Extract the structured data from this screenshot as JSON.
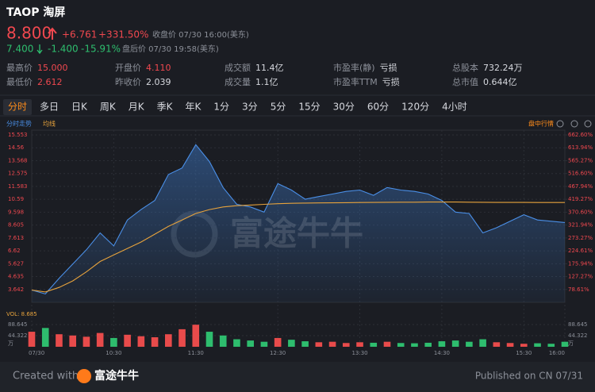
{
  "header": {
    "symbol": "TAOP 淘屏",
    "price": "8.800",
    "change": "+6.761",
    "change_pct": "+331.50%",
    "close_label": "收盘价 07/30 16:00(美东)",
    "ah_price": "7.400",
    "ah_change": "-1.400",
    "ah_pct": "-15.91%",
    "ah_label": "盘后价 07/30 19:58(美东)"
  },
  "stats": [
    {
      "label": "最高价",
      "value": "15.000",
      "color": "#f0484f"
    },
    {
      "label": "最低价",
      "value": "2.612",
      "color": "#f0484f"
    },
    {
      "label": "开盘价",
      "value": "4.110",
      "color": "#f0484f"
    },
    {
      "label": "昨收价",
      "value": "2.039",
      "color": "#d6d8de"
    },
    {
      "label": "成交额",
      "value": "11.4亿",
      "color": "#d6d8de"
    },
    {
      "label": "成交量",
      "value": "1.1亿",
      "color": "#d6d8de"
    },
    {
      "label": "市盈率(静)",
      "value": "亏损",
      "color": "#d6d8de"
    },
    {
      "label": "市盈率TTM",
      "value": "亏损",
      "color": "#d6d8de"
    },
    {
      "label": "总股本",
      "value": "732.24万",
      "color": "#d6d8de"
    },
    {
      "label": "总市值",
      "value": "0.644亿",
      "color": "#d6d8de"
    }
  ],
  "tabs": [
    "分时",
    "多日",
    "日K",
    "周K",
    "月K",
    "季K",
    "年K",
    "1分",
    "3分",
    "5分",
    "15分",
    "30分",
    "60分",
    "120分",
    "4小时"
  ],
  "selected_tab": 0,
  "chart_data": {
    "type": "line",
    "mode_label": "盘中行情",
    "watermark": "富途牛牛",
    "categories": [
      "09:30",
      "09:40",
      "09:50",
      "10:00",
      "10:10",
      "10:20",
      "10:30",
      "10:40",
      "10:50",
      "11:00",
      "11:10",
      "11:20",
      "11:30",
      "11:40",
      "11:50",
      "12:00",
      "12:10",
      "12:20",
      "12:30",
      "12:40",
      "12:50",
      "13:00",
      "13:10",
      "13:20",
      "13:30",
      "13:40",
      "13:50",
      "14:00",
      "14:10",
      "14:20",
      "14:30",
      "14:40",
      "14:50",
      "15:00",
      "15:10",
      "15:20",
      "15:30",
      "15:40",
      "15:50",
      "16:00"
    ],
    "series": [
      {
        "name": "分时走势",
        "color": "#4a8fe7",
        "values": [
          3.6,
          3.3,
          4.5,
          5.6,
          6.7,
          8.0,
          7.0,
          9.0,
          9.8,
          10.5,
          12.5,
          13.0,
          14.8,
          13.5,
          11.5,
          10.2,
          10.0,
          9.6,
          11.8,
          11.3,
          10.6,
          10.8,
          11.0,
          11.2,
          11.3,
          10.9,
          11.5,
          11.3,
          11.2,
          11.0,
          10.5,
          9.6,
          9.5,
          8.0,
          8.4,
          8.9,
          9.4,
          9.0,
          8.9,
          8.8
        ]
      },
      {
        "name": "均线",
        "color": "#e6a23c",
        "values": [
          3.6,
          3.45,
          3.8,
          4.3,
          5.0,
          5.8,
          6.3,
          6.8,
          7.3,
          7.9,
          8.5,
          9.0,
          9.5,
          9.8,
          10.0,
          10.1,
          10.15,
          10.2,
          10.25,
          10.28,
          10.3,
          10.31,
          10.32,
          10.33,
          10.34,
          10.35,
          10.36,
          10.37,
          10.37,
          10.38,
          10.38,
          10.38,
          10.37,
          10.36,
          10.35,
          10.35,
          10.35,
          10.34,
          10.34,
          10.34
        ]
      }
    ],
    "xticks": [
      {
        "value": "09:30",
        "label": "07/30"
      },
      "10:30",
      "11:30",
      "12:30",
      "13:30",
      "14:30",
      "15:30",
      "16:00"
    ],
    "ylim": [
      2.65,
      15.553
    ],
    "yticks": [
      15.553,
      14.56,
      13.568,
      12.575,
      11.583,
      10.59,
      9.598,
      8.605,
      7.613,
      6.62,
      5.627,
      4.635,
      3.642
    ],
    "y2lim": [
      29.97,
      662.6
    ],
    "y2ticks": [
      {
        "value": 662.6,
        "label": "662.60%"
      },
      {
        "value": 613.94,
        "label": "613.94%"
      },
      {
        "value": 565.27,
        "label": "565.27%"
      },
      {
        "value": 516.6,
        "label": "516.60%"
      },
      {
        "value": 467.94,
        "label": "467.94%"
      },
      {
        "value": 419.27,
        "label": "419.27%"
      },
      {
        "value": 370.6,
        "label": "370.60%"
      },
      {
        "value": 321.94,
        "label": "321.94%"
      },
      {
        "value": 273.27,
        "label": "273.27%"
      },
      {
        "value": 224.61,
        "label": "224.61%"
      },
      {
        "value": 175.94,
        "label": "175.94%"
      },
      {
        "value": 127.27,
        "label": "127.27%"
      },
      {
        "value": 78.61,
        "label": "78.61%"
      }
    ],
    "grid": true,
    "volume": {
      "label": "VOL: 8.685",
      "unit": "万",
      "ylim": [
        0,
        88.645
      ],
      "yticks": [
        88.645,
        44.322
      ],
      "values": [
        60,
        75,
        50,
        45,
        40,
        55,
        35,
        48,
        42,
        38,
        50,
        70,
        88,
        60,
        45,
        30,
        25,
        20,
        35,
        28,
        22,
        18,
        20,
        15,
        18,
        16,
        20,
        15,
        14,
        16,
        22,
        25,
        20,
        30,
        18,
        15,
        12,
        14,
        12,
        20
      ],
      "colors": [
        "#e84b4b",
        "#2ebd6e",
        "#e84b4b",
        "#e84b4b",
        "#e84b4b",
        "#e84b4b",
        "#2ebd6e",
        "#e84b4b",
        "#e84b4b",
        "#e84b4b",
        "#e84b4b",
        "#e84b4b",
        "#e84b4b",
        "#2ebd6e",
        "#2ebd6e",
        "#2ebd6e",
        "#2ebd6e",
        "#2ebd6e",
        "#e84b4b",
        "#2ebd6e",
        "#2ebd6e",
        "#e84b4b",
        "#e84b4b",
        "#e84b4b",
        "#e84b4b",
        "#2ebd6e",
        "#e84b4b",
        "#2ebd6e",
        "#2ebd6e",
        "#2ebd6e",
        "#2ebd6e",
        "#2ebd6e",
        "#2ebd6e",
        "#2ebd6e",
        "#e84b4b",
        "#e84b4b",
        "#e84b4b",
        "#2ebd6e",
        "#2ebd6e",
        "#2ebd6e"
      ]
    }
  },
  "footer": {
    "created": "Created with",
    "brand": "富途牛牛",
    "published": "Published on CN 07/31"
  }
}
